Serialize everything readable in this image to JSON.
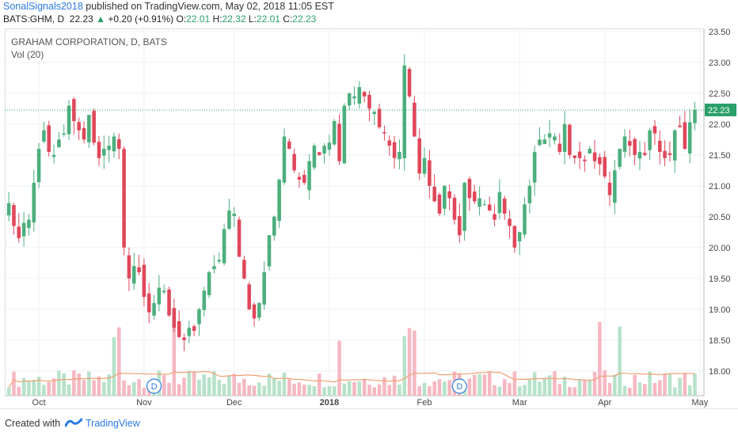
{
  "header": {
    "author": "SonalSignals2018",
    "published_text": "published on TradingView.com, May 02, 2018 11:05 EST",
    "symbol": "BATS:GHM, D",
    "last": "22.23",
    "change": "+0.20 (+0.91%)",
    "open_label": "O:",
    "open": "22.01",
    "high_label": "H:",
    "high": "22.32",
    "low_label": "L:",
    "low": "22.01",
    "close_label": "C:",
    "close": "22.23"
  },
  "legend": {
    "title": "GRAHAM CORPORATION, D, BATS",
    "indicator": "Vol (20)"
  },
  "footer": {
    "created_with": "Created with",
    "brand": "TradingView",
    "logo_icon": "tradingview-logo-icon"
  },
  "colors": {
    "up": "#4caf7d",
    "down": "#e0475a",
    "up_volume": "#b6e2c9",
    "down_volume": "#f5b8c2",
    "ma": "#f0a070",
    "last_line": "#2aa06a",
    "axis_text": "#444"
  },
  "chart_data": {
    "type": "candlestick",
    "title": "GRAHAM CORPORATION, D, BATS",
    "y_ticks": [
      18.0,
      18.5,
      19.0,
      19.5,
      20.0,
      20.5,
      21.0,
      21.5,
      22.0,
      22.5,
      23.0,
      23.5
    ],
    "ylim": [
      17.6,
      23.55
    ],
    "last_price": 22.23,
    "x_labels": [
      "Oct",
      "Nov",
      "Dec",
      "2018",
      "Feb",
      "Mar",
      "Apr",
      "May"
    ],
    "x_label_positions": [
      6,
      27,
      45,
      64,
      83,
      102,
      119,
      138
    ],
    "dividend_markers": [
      {
        "label": "D",
        "index": 29
      },
      {
        "label": "D",
        "index": 90
      }
    ],
    "volume_indicator": "Vol (20)",
    "close_prices": [
      20.72,
      20.35,
      20.15,
      20.4,
      20.45,
      21.05,
      21.6,
      21.9,
      21.55,
      21.5,
      21.75,
      21.85,
      22.3,
      22.05,
      21.9,
      21.75,
      22.15,
      21.7,
      21.45,
      21.6,
      21.65,
      21.8,
      21.6,
      20.0,
      19.5,
      19.7,
      19.6,
      19.2,
      18.95,
      19.1,
      19.35,
      19.3,
      18.9,
      18.7,
      18.55,
      18.5,
      18.7,
      18.65,
      19.0,
      19.3,
      19.6,
      19.7,
      19.8,
      20.3,
      20.6,
      20.55,
      19.85,
      19.5,
      19.0,
      18.85,
      19.1,
      19.6,
      20.2,
      20.5,
      21.1,
      21.8,
      21.6,
      21.25,
      21.1,
      21.05,
      21.4,
      21.65,
      21.5,
      21.65,
      21.7,
      22.05,
      21.4,
      22.3,
      22.5,
      22.45,
      22.6,
      22.45,
      22.25,
      22.2,
      21.95,
      21.85,
      21.65,
      21.45,
      21.55,
      22.95,
      22.45,
      21.8,
      21.2,
      21.45,
      21.0,
      20.75,
      20.55,
      21.0,
      20.8,
      20.45,
      20.2,
      21.05,
      20.8,
      20.75,
      20.8,
      20.7,
      20.6,
      20.45,
      20.9,
      20.55,
      20.35,
      20.0,
      20.25,
      20.7,
      21.0,
      21.55,
      21.75,
      21.75,
      21.85,
      21.8,
      21.55,
      22.0,
      21.5,
      21.45,
      21.45,
      21.4,
      21.6,
      21.4,
      21.35,
      21.15,
      20.85,
      21.25,
      21.6,
      21.8,
      21.65,
      21.5,
      21.55,
      21.5,
      21.9,
      21.85,
      21.55,
      21.45,
      21.5,
      21.9,
      21.95,
      21.6,
      22.03,
      22.23
    ]
  }
}
